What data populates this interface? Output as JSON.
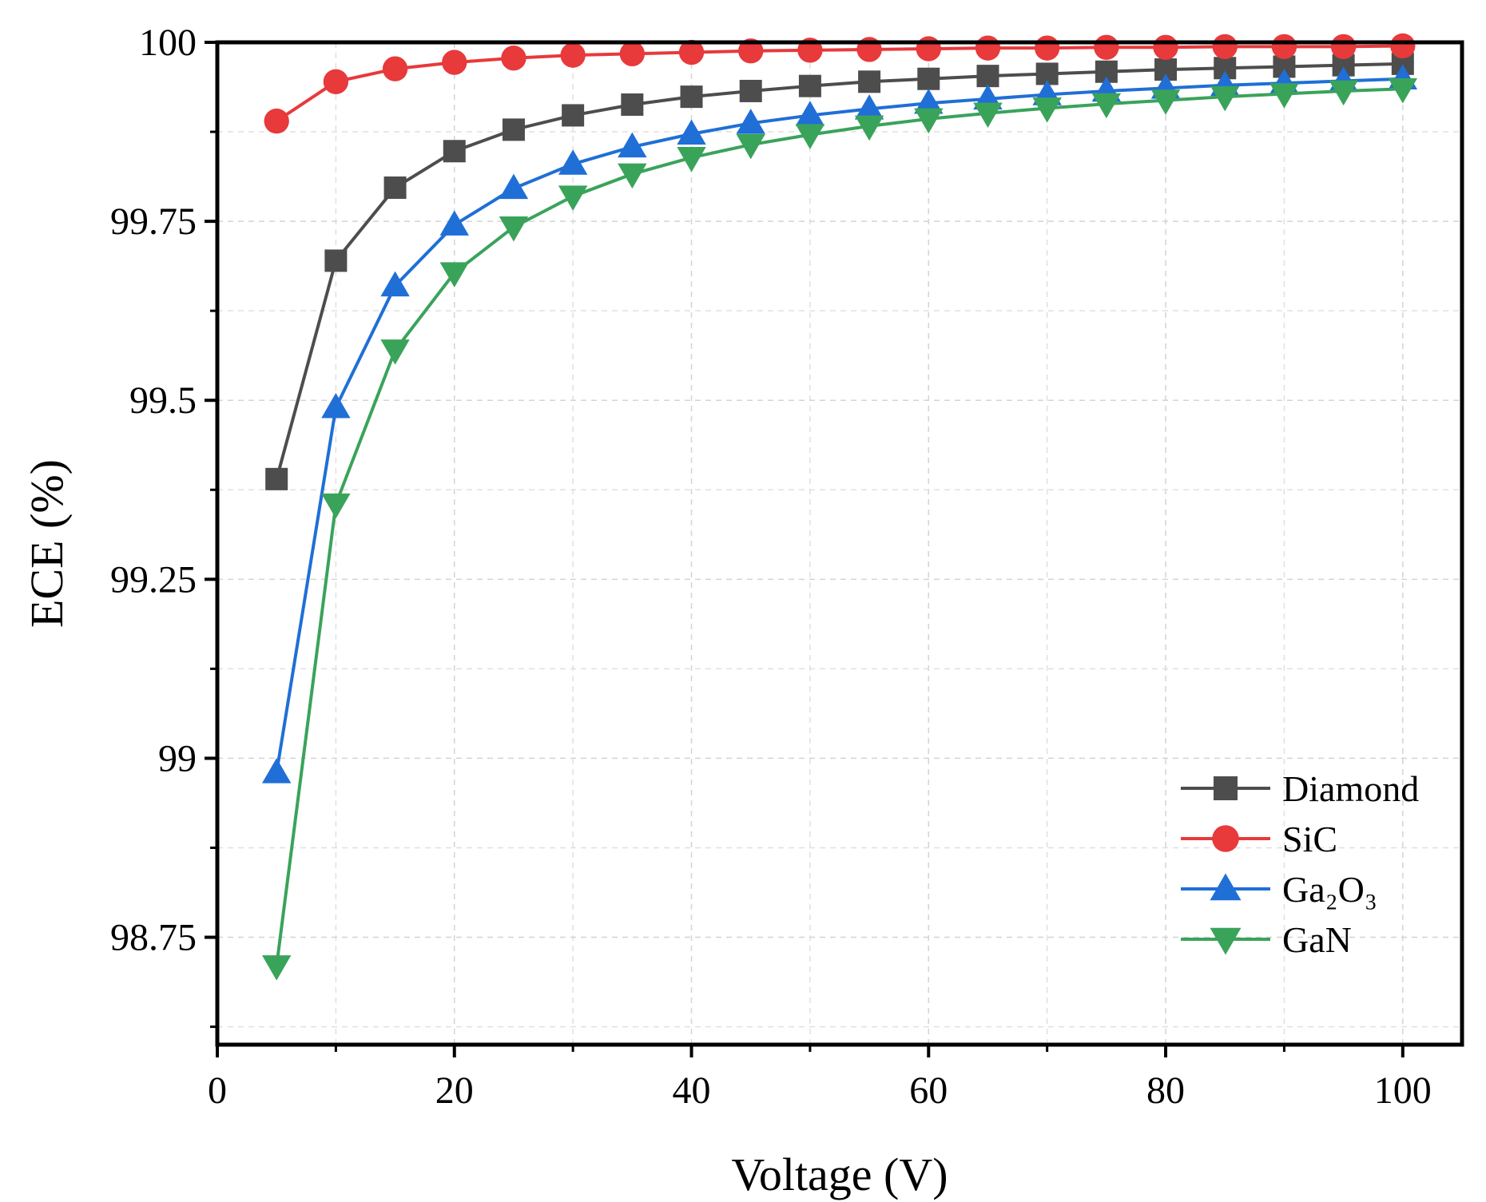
{
  "chart_data": {
    "type": "line",
    "xlabel": "Voltage (V)",
    "ylabel": "ECE (%)",
    "xlim": [
      0,
      105
    ],
    "ylim": [
      98.6,
      100
    ],
    "x_ticks": [
      "0",
      "20",
      "40",
      "60",
      "80",
      "100"
    ],
    "y_ticks": [
      "98.75",
      "99",
      "99.25",
      "99.5",
      "99.75",
      "100"
    ],
    "grid": true,
    "legend_position": "lower-right",
    "x": [
      5,
      10,
      15,
      20,
      25,
      30,
      35,
      40,
      45,
      50,
      55,
      60,
      65,
      70,
      75,
      80,
      85,
      90,
      95,
      100
    ],
    "series": [
      {
        "name": "Diamond",
        "marker": "square",
        "color": "#4d4d4d",
        "values": [
          99.39,
          99.695,
          99.797,
          99.848,
          99.878,
          99.898,
          99.913,
          99.924,
          99.932,
          99.939,
          99.945,
          99.949,
          99.953,
          99.956,
          99.959,
          99.962,
          99.964,
          99.966,
          99.968,
          99.97
        ]
      },
      {
        "name": "SiC",
        "marker": "circle",
        "color": "#e8393b",
        "values": [
          99.89,
          99.945,
          99.963,
          99.972,
          99.978,
          99.982,
          99.984,
          99.986,
          99.988,
          99.989,
          99.99,
          99.991,
          99.992,
          99.992,
          99.993,
          99.993,
          99.994,
          99.994,
          99.994,
          99.995
        ]
      },
      {
        "name": "Ga₂O₃",
        "marker": "triangle-up",
        "color": "#1f6fd6",
        "values": [
          98.98,
          99.49,
          99.66,
          99.745,
          99.796,
          99.83,
          99.854,
          99.872,
          99.887,
          99.898,
          99.907,
          99.915,
          99.921,
          99.927,
          99.932,
          99.936,
          99.94,
          99.943,
          99.946,
          99.949
        ]
      },
      {
        "name": "GaN",
        "marker": "triangle-down",
        "color": "#3aa35a",
        "values": [
          98.71,
          99.355,
          99.57,
          99.678,
          99.742,
          99.785,
          99.816,
          99.839,
          99.857,
          99.871,
          99.883,
          99.893,
          99.901,
          99.908,
          99.914,
          99.919,
          99.924,
          99.928,
          99.932,
          99.935
        ]
      }
    ]
  }
}
